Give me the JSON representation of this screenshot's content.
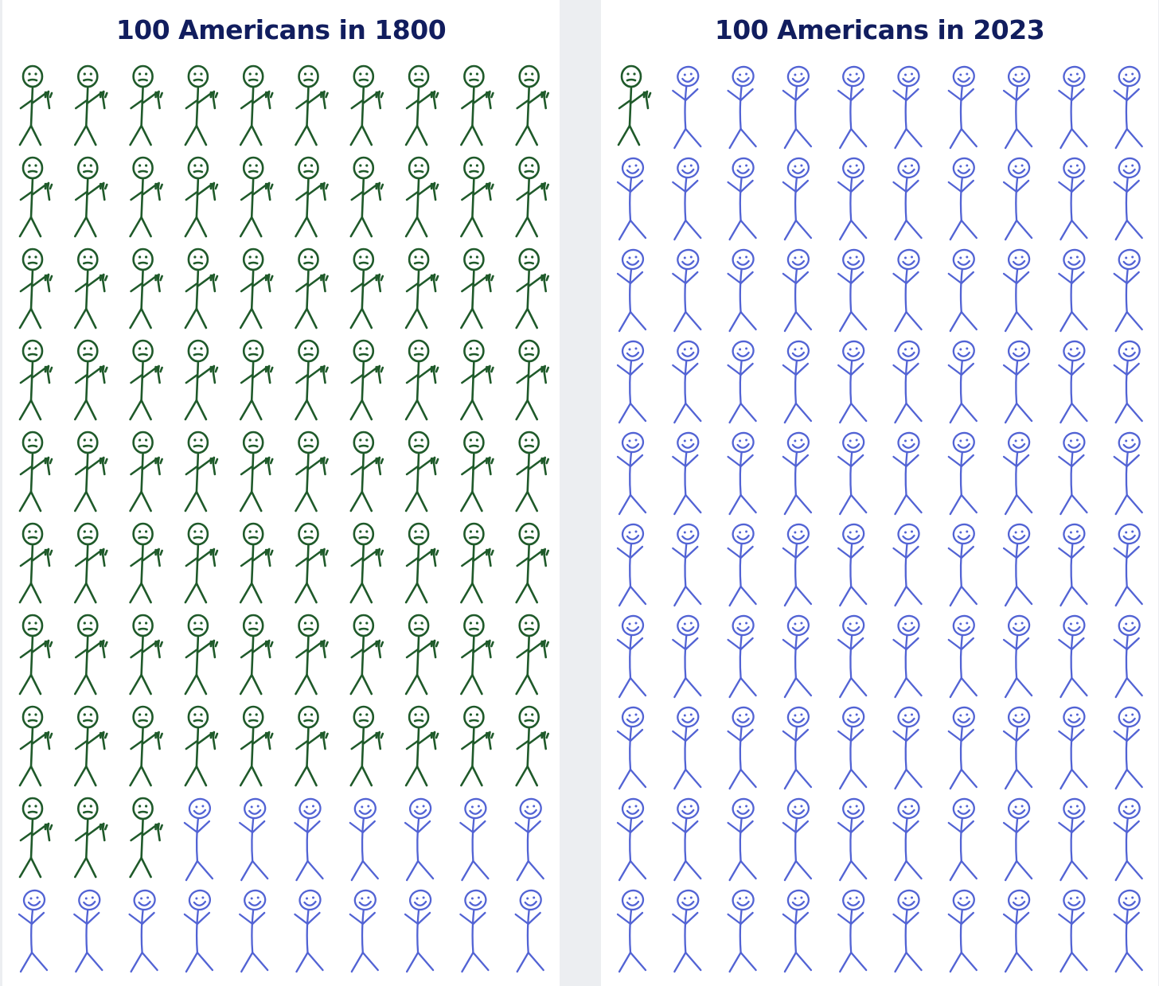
{
  "chart_data": [
    {
      "type": "pictograph",
      "title": "100 Americans in 1800",
      "total": 100,
      "grid": {
        "rows": 10,
        "columns": 10
      },
      "series": [
        {
          "key": "unhappy",
          "count": 83,
          "color": "#1f5a2a",
          "icon": "frowning-stick-figure-icon"
        },
        {
          "key": "happy",
          "count": 17,
          "color": "#5263d4",
          "icon": "smiling-stick-figure-icon"
        }
      ]
    },
    {
      "type": "pictograph",
      "title": "100 Americans in 2023",
      "total": 100,
      "grid": {
        "rows": 10,
        "columns": 10
      },
      "series": [
        {
          "key": "unhappy",
          "count": 1,
          "color": "#1f5a2a",
          "icon": "frowning-stick-figure-icon"
        },
        {
          "key": "happy",
          "count": 99,
          "color": "#5263d4",
          "icon": "smiling-stick-figure-icon"
        }
      ]
    }
  ]
}
